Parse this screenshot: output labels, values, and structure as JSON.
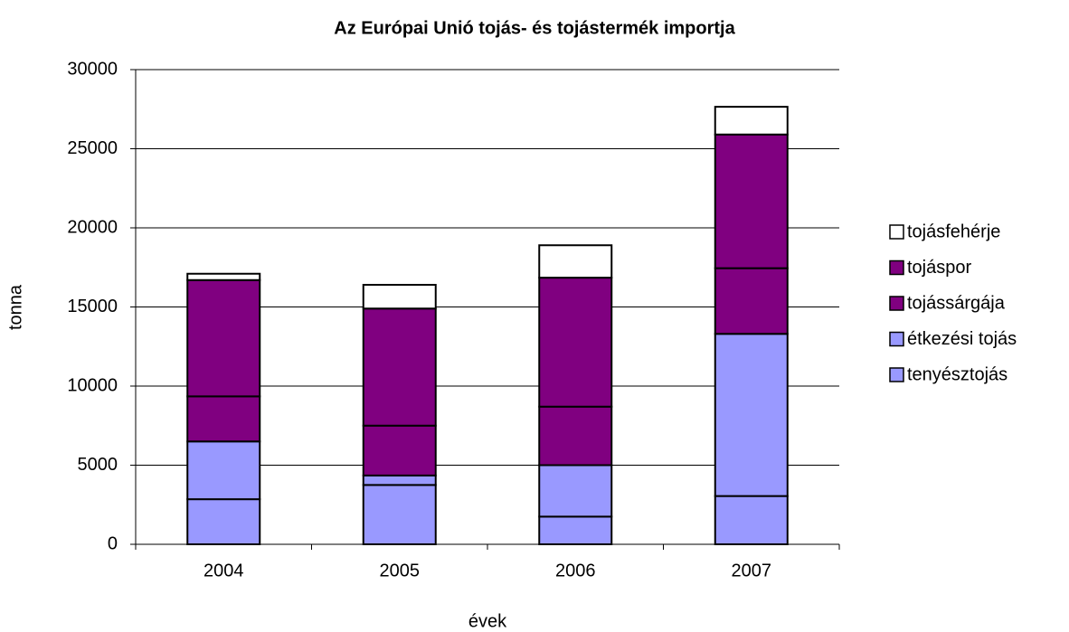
{
  "chart_data": {
    "type": "stacked_bar",
    "title": "Az Európai Unió tojás- és tojástermék importja",
    "x_label": "évek",
    "y_label": "tonna",
    "categories": [
      "2004",
      "2005",
      "2006",
      "2007"
    ],
    "series": [
      {
        "name": "tenyésztojás",
        "color": "#9999ff",
        "values": [
          2850,
          3750,
          1750,
          3050
        ]
      },
      {
        "name": "étkezési tojás",
        "color": "#9999ff",
        "values": [
          3650,
          600,
          3250,
          10250
        ]
      },
      {
        "name": "tojássárgája",
        "color": "#800080",
        "values": [
          2850,
          3150,
          3700,
          4150
        ]
      },
      {
        "name": "tojáspor",
        "color": "#800080",
        "values": [
          7350,
          7400,
          8150,
          8450
        ]
      },
      {
        "name": "tojásfehérje",
        "color": "#ffffff",
        "values": [
          400,
          1500,
          2050,
          1750
        ]
      }
    ],
    "ylim": [
      0,
      30000
    ],
    "yticks": [
      0,
      5000,
      10000,
      15000,
      20000,
      25000,
      30000
    ],
    "grid": true,
    "legend": "right"
  }
}
